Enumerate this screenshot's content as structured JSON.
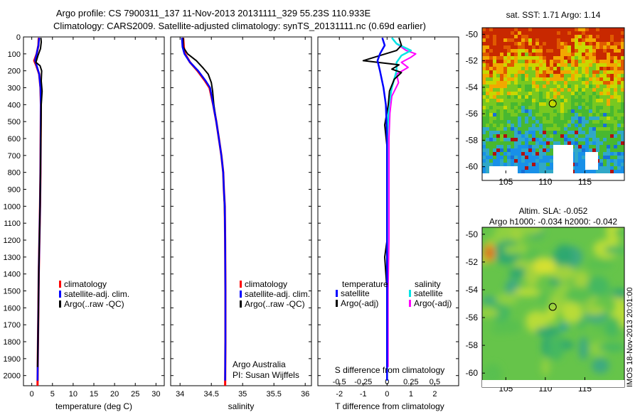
{
  "figure": {
    "title_line1": "Argo profile: CS 7900311_137 11-Nov-2013 20131111_329 55.23S 110.933E",
    "title_line2": "Climatology: CARS2009. Satellite-adjusted climatology: synTS_20131111.nc (0.69d earlier)",
    "side_stamp": "IMOS 18-Nov-2013 20:01:00",
    "credit_line1": "Argo Australia",
    "credit_line2": "PI: Susan Wijffels",
    "colors": {
      "climatology": "#ff0000",
      "satellite": "#0000ff",
      "argo": "#000000",
      "sat_salinity": "#00e5e5",
      "argo_salinity": "#ff00ff"
    }
  },
  "chart_data": [
    {
      "type": "line",
      "name": "temperature-profile",
      "xlabel": "temperature (deg C)",
      "ylabel": "",
      "xlim": [
        -2,
        32
      ],
      "ylim": [
        2060,
        0
      ],
      "xticks": [
        0,
        5,
        10,
        15,
        20,
        25,
        30
      ],
      "yticks": [
        0,
        100,
        200,
        300,
        400,
        500,
        600,
        700,
        800,
        900,
        1000,
        1100,
        1200,
        1300,
        1400,
        1500,
        1600,
        1700,
        1800,
        1900,
        2000
      ],
      "y_reversed": true,
      "legend": [
        "climatology",
        "satellite-adj. clim.",
        "Argo(..raw -QC)"
      ],
      "legend_position": "lower-right",
      "series": [
        {
          "name": "climatology",
          "points": [
            [
              1.7,
              5
            ],
            [
              1.6,
              50
            ],
            [
              1.2,
              100
            ],
            [
              0.6,
              140
            ],
            [
              1.1,
              170
            ],
            [
              1.8,
              220
            ],
            [
              2.1,
              300
            ],
            [
              2.2,
              400
            ],
            [
              2.15,
              600
            ],
            [
              2.1,
              800
            ],
            [
              2.0,
              1000
            ],
            [
              1.85,
              1200
            ],
            [
              1.7,
              1400
            ],
            [
              1.6,
              1600
            ],
            [
              1.5,
              1800
            ],
            [
              1.4,
              2060
            ]
          ]
        },
        {
          "name": "satellite-adj. clim.",
          "points": [
            [
              1.8,
              5
            ],
            [
              1.6,
              50
            ],
            [
              1.2,
              100
            ],
            [
              0.8,
              140
            ],
            [
              1.2,
              170
            ],
            [
              1.8,
              220
            ],
            [
              2.1,
              300
            ],
            [
              2.2,
              400
            ],
            [
              2.15,
              600
            ],
            [
              2.1,
              800
            ],
            [
              2.0,
              1000
            ],
            [
              1.85,
              1200
            ],
            [
              1.7,
              1400
            ],
            [
              1.6,
              1600
            ],
            [
              1.5,
              1800
            ],
            [
              1.4,
              2030
            ]
          ]
        },
        {
          "name": "Argo(..raw -QC)",
          "points": [
            [
              2.2,
              5
            ],
            [
              2.3,
              30
            ],
            [
              2.1,
              70
            ],
            [
              1.5,
              110
            ],
            [
              1.0,
              150
            ],
            [
              2.0,
              170
            ],
            [
              2.4,
              200
            ],
            [
              2.3,
              260
            ],
            [
              2.5,
              320
            ],
            [
              2.3,
              400
            ],
            [
              2.2,
              600
            ],
            [
              2.1,
              800
            ],
            [
              2.0,
              1000
            ],
            [
              1.85,
              1200
            ],
            [
              1.7,
              1400
            ],
            [
              1.6,
              1600
            ],
            [
              1.5,
              1800
            ],
            [
              1.4,
              1950
            ]
          ]
        }
      ]
    },
    {
      "type": "line",
      "name": "salinity-profile",
      "xlabel": "salinity",
      "xlim": [
        33.85,
        36.1
      ],
      "ylim": [
        2060,
        0
      ],
      "xticks": [
        34,
        34.5,
        35,
        35.5,
        36
      ],
      "y_reversed": true,
      "legend": [
        "climatology",
        "satellite-adj. clim.",
        "Argo(..raw -QC)"
      ],
      "legend_position": "lower-right",
      "series": [
        {
          "name": "climatology",
          "points": [
            [
              34.05,
              5
            ],
            [
              34.06,
              60
            ],
            [
              34.08,
              100
            ],
            [
              34.16,
              150
            ],
            [
              34.28,
              200
            ],
            [
              34.4,
              260
            ],
            [
              34.47,
              300
            ],
            [
              34.53,
              400
            ],
            [
              34.58,
              500
            ],
            [
              34.62,
              600
            ],
            [
              34.66,
              700
            ],
            [
              34.69,
              800
            ],
            [
              34.7,
              900
            ],
            [
              34.715,
              1000
            ],
            [
              34.72,
              1200
            ],
            [
              34.725,
              1500
            ],
            [
              34.725,
              1800
            ],
            [
              34.72,
              2060
            ]
          ]
        },
        {
          "name": "satellite-adj. clim.",
          "points": [
            [
              34.03,
              5
            ],
            [
              34.04,
              60
            ],
            [
              34.07,
              100
            ],
            [
              34.16,
              150
            ],
            [
              34.29,
              200
            ],
            [
              34.41,
              260
            ],
            [
              34.48,
              300
            ],
            [
              34.53,
              400
            ],
            [
              34.58,
              500
            ],
            [
              34.62,
              600
            ],
            [
              34.66,
              700
            ],
            [
              34.69,
              800
            ],
            [
              34.7,
              900
            ],
            [
              34.715,
              1000
            ],
            [
              34.72,
              1200
            ],
            [
              34.725,
              1500
            ],
            [
              34.725,
              1800
            ],
            [
              34.72,
              2030
            ]
          ]
        },
        {
          "name": "Argo(..raw -QC)",
          "points": [
            [
              34.05,
              5
            ],
            [
              34.05,
              60
            ],
            [
              34.12,
              100
            ],
            [
              34.26,
              140
            ],
            [
              34.36,
              180
            ],
            [
              34.45,
              220
            ],
            [
              34.5,
              270
            ],
            [
              34.52,
              320
            ],
            [
              34.54,
              400
            ],
            [
              34.58,
              500
            ],
            [
              34.62,
              600
            ],
            [
              34.66,
              700
            ],
            [
              34.69,
              800
            ],
            [
              34.7,
              900
            ],
            [
              34.71,
              1000
            ],
            [
              34.72,
              1200
            ],
            [
              34.725,
              1500
            ],
            [
              34.725,
              1800
            ],
            [
              34.72,
              1950
            ]
          ]
        }
      ]
    },
    {
      "type": "line",
      "name": "difference-profile",
      "xlabel": "T difference from climatology",
      "xlabel_top": "S difference from climatology",
      "xlim": [
        -2.9,
        3.0
      ],
      "ylim": [
        2060,
        0
      ],
      "xticks": [
        -2,
        -1,
        0,
        1,
        2
      ],
      "xticks_s": [
        -0.5,
        -0.25,
        0,
        0.25,
        0.5
      ],
      "xticks_s_labels": [
        "-0.5",
        "-0.25",
        "0",
        "0.25",
        "0.5"
      ],
      "y_reversed": true,
      "legend_headers": [
        "temperature",
        "salinity"
      ],
      "legend": [
        "satellite",
        "Argo(-adj)",
        "satellite",
        "Argo(-adj)"
      ],
      "legend_position": "lower-center",
      "series": [
        {
          "name": "satellite",
          "quantity": "temperature",
          "points": [
            [
              -0.2,
              5
            ],
            [
              -0.1,
              50
            ],
            [
              -0.3,
              100
            ],
            [
              -0.4,
              140
            ],
            [
              -0.3,
              200
            ],
            [
              -0.15,
              300
            ],
            [
              -0.05,
              400
            ],
            [
              0,
              600
            ],
            [
              0,
              1000
            ],
            [
              0,
              1500
            ],
            [
              0,
              2030
            ]
          ]
        },
        {
          "name": "Argo(-adj)",
          "quantity": "temperature",
          "points": [
            [
              0.5,
              5
            ],
            [
              0.6,
              50
            ],
            [
              0.4,
              80
            ],
            [
              -0.3,
              110
            ],
            [
              -1.0,
              140
            ],
            [
              0.5,
              165
            ],
            [
              0.2,
              190
            ],
            [
              0.6,
              210
            ],
            [
              0.3,
              250
            ],
            [
              0.1,
              320
            ],
            [
              0.05,
              400
            ],
            [
              -0.1,
              520
            ],
            [
              0,
              650
            ],
            [
              0,
              900
            ],
            [
              0,
              1200
            ],
            [
              -0.1,
              1300
            ],
            [
              0,
              1500
            ],
            [
              0,
              1950
            ]
          ]
        },
        {
          "name": "satellite",
          "quantity": "salinity",
          "points": [
            [
              0.05,
              5
            ],
            [
              0.1,
              40
            ],
            [
              0.25,
              80
            ],
            [
              0.15,
              110
            ],
            [
              0.1,
              150
            ],
            [
              0.1,
              200
            ],
            [
              0.05,
              300
            ],
            [
              0.02,
              400
            ],
            [
              0,
              600
            ],
            [
              0,
              1000
            ],
            [
              0,
              1500
            ],
            [
              0,
              2030
            ]
          ]
        },
        {
          "name": "Argo(-adj)",
          "quantity": "salinity",
          "points": [
            [
              0.05,
              5
            ],
            [
              0.1,
              40
            ],
            [
              0.2,
              80
            ],
            [
              0.3,
              100
            ],
            [
              0.25,
              120
            ],
            [
              0.15,
              150
            ],
            [
              0.22,
              180
            ],
            [
              0.1,
              220
            ],
            [
              0.12,
              270
            ],
            [
              0.05,
              350
            ],
            [
              0.03,
              450
            ],
            [
              0.02,
              600
            ],
            [
              0.02,
              900
            ],
            [
              0.02,
              1200
            ],
            [
              0.01,
              1500
            ],
            [
              0.01,
              1950
            ]
          ]
        }
      ]
    },
    {
      "type": "heatmap",
      "name": "sst-map",
      "title": "sat. SST: 1.71  Argo: 1.14",
      "xticks": [
        105,
        110,
        115
      ],
      "yticks": [
        -50,
        -52,
        -54,
        -56,
        -58,
        -60
      ],
      "xlim": [
        102,
        120
      ],
      "ylim": [
        -60.5,
        -49.5
      ],
      "marker": [
        110.933,
        -55.23
      ]
    },
    {
      "type": "heatmap",
      "name": "sla-map",
      "title_line1": "Altim. SLA: -0.052",
      "title_line2": "Argo h1000: -0.034 h2000: -0.042",
      "xticks": [
        105,
        110,
        115
      ],
      "yticks": [
        -50,
        -52,
        -54,
        -56,
        -58,
        -60
      ],
      "xlim": [
        102,
        120
      ],
      "ylim": [
        -60.5,
        -49.5
      ],
      "marker": [
        110.933,
        -55.23
      ]
    }
  ]
}
